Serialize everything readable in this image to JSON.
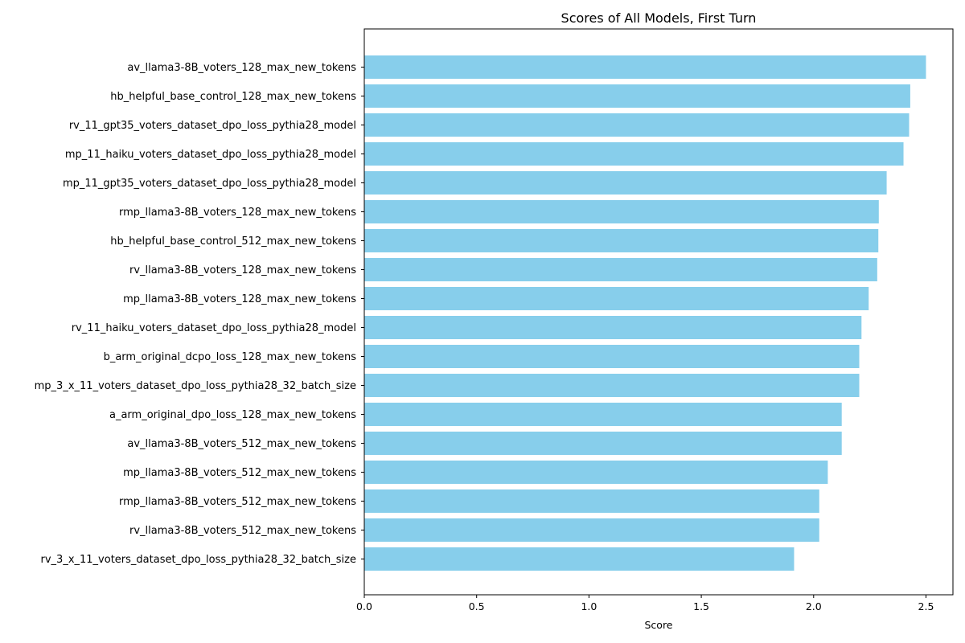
{
  "chart_data": {
    "type": "bar",
    "orientation": "horizontal",
    "title": "Scores of All Models, First Turn",
    "xlabel": "Score",
    "ylabel": "",
    "xlim": [
      0,
      2.62
    ],
    "xticks": [
      0.0,
      0.5,
      1.0,
      1.5,
      2.0,
      2.5
    ],
    "xtick_labels": [
      "0.0",
      "0.5",
      "1.0",
      "1.5",
      "2.0",
      "2.5"
    ],
    "grid": false,
    "bar_color": "#87CEEB",
    "categories": [
      "av_llama3-8B_voters_128_max_new_tokens",
      "hb_helpful_base_control_128_max_new_tokens",
      "rv_11_gpt35_voters_dataset_dpo_loss_pythia28_model",
      "mp_11_haiku_voters_dataset_dpo_loss_pythia28_model",
      "mp_11_gpt35_voters_dataset_dpo_loss_pythia28_model",
      "rmp_llama3-8B_voters_128_max_new_tokens",
      "hb_helpful_base_control_512_max_new_tokens",
      "rv_llama3-8B_voters_128_max_new_tokens",
      "mp_llama3-8B_voters_128_max_new_tokens",
      "rv_11_haiku_voters_dataset_dpo_loss_pythia28_model",
      "b_arm_original_dcpo_loss_128_max_new_tokens",
      "mp_3_x_11_voters_dataset_dpo_loss_pythia28_32_batch_size",
      "a_arm_original_dpo_loss_128_max_new_tokens",
      "av_llama3-8B_voters_512_max_new_tokens",
      "mp_llama3-8B_voters_512_max_new_tokens",
      "rmp_llama3-8B_voters_512_max_new_tokens",
      "rv_llama3-8B_voters_512_max_new_tokens",
      "rv_3_x_11_voters_dataset_dpo_loss_pythia28_32_batch_size"
    ],
    "values": [
      2.5,
      2.43,
      2.425,
      2.4,
      2.325,
      2.29,
      2.288,
      2.283,
      2.245,
      2.213,
      2.203,
      2.203,
      2.125,
      2.125,
      2.063,
      2.025,
      2.025,
      1.913
    ]
  }
}
